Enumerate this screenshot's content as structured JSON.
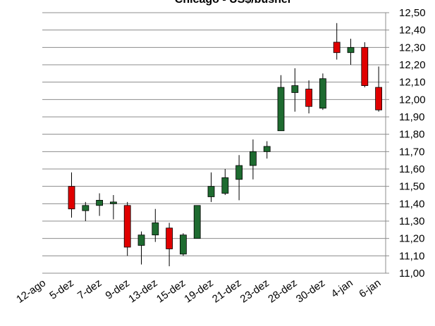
{
  "chart_data": {
    "type": "candlestick",
    "title": "Chicago - US$/bushel",
    "categories": [
      "12-ago",
      null,
      "5-dez",
      null,
      "7-dez",
      null,
      "9-dez",
      null,
      "13-dez",
      null,
      "15-dez",
      null,
      "19-dez",
      null,
      "21-dez",
      null,
      "23-dez",
      null,
      "28-dez",
      null,
      "30-dez",
      null,
      "4-jan",
      null,
      "6-jan"
    ],
    "open": [
      null,
      null,
      11.5,
      11.36,
      11.39,
      11.4,
      11.39,
      11.16,
      11.22,
      11.26,
      11.11,
      11.2,
      11.44,
      11.46,
      11.54,
      11.62,
      11.7,
      11.82,
      12.04,
      12.06,
      11.95,
      12.33,
      12.27,
      12.3,
      12.07
    ],
    "high": [
      null,
      null,
      11.58,
      11.41,
      11.46,
      11.45,
      11.41,
      11.24,
      11.37,
      11.29,
      11.23,
      11.39,
      11.58,
      11.6,
      11.68,
      11.77,
      11.76,
      12.14,
      12.18,
      12.11,
      12.15,
      12.44,
      12.35,
      12.33,
      12.19
    ],
    "low": [
      null,
      null,
      11.32,
      11.3,
      11.33,
      11.31,
      11.1,
      11.05,
      11.18,
      11.04,
      11.1,
      11.2,
      11.41,
      11.45,
      11.42,
      11.54,
      11.66,
      11.82,
      11.93,
      11.92,
      11.94,
      12.23,
      12.2,
      12.07,
      11.93
    ],
    "close": [
      null,
      null,
      11.37,
      11.39,
      11.42,
      11.41,
      11.15,
      11.22,
      11.29,
      11.14,
      11.22,
      11.39,
      11.5,
      11.55,
      11.62,
      11.7,
      11.73,
      12.07,
      12.08,
      11.96,
      12.12,
      12.27,
      12.3,
      12.08,
      11.94
    ],
    "up_color": "#1e6b30",
    "down_color": "#e00000",
    "ylim": [
      11.0,
      12.5
    ],
    "yticks": [
      {
        "value": 11.0,
        "label": "11,00"
      },
      {
        "value": 11.1,
        "label": "11,10"
      },
      {
        "value": 11.2,
        "label": "11,20"
      },
      {
        "value": 11.3,
        "label": "11,30"
      },
      {
        "value": 11.4,
        "label": "11,40"
      },
      {
        "value": 11.5,
        "label": "11,50"
      },
      {
        "value": 11.6,
        "label": "11,60"
      },
      {
        "value": 11.7,
        "label": "11,70"
      },
      {
        "value": 11.8,
        "label": "11,80"
      },
      {
        "value": 11.9,
        "label": "11,90"
      },
      {
        "value": 12.0,
        "label": "12,00"
      },
      {
        "value": 12.1,
        "label": "12,10"
      },
      {
        "value": 12.2,
        "label": "12,20"
      },
      {
        "value": 12.3,
        "label": "12,30"
      },
      {
        "value": 12.4,
        "label": "12,40"
      },
      {
        "value": 12.5,
        "label": "12,50"
      }
    ],
    "grid": true
  }
}
